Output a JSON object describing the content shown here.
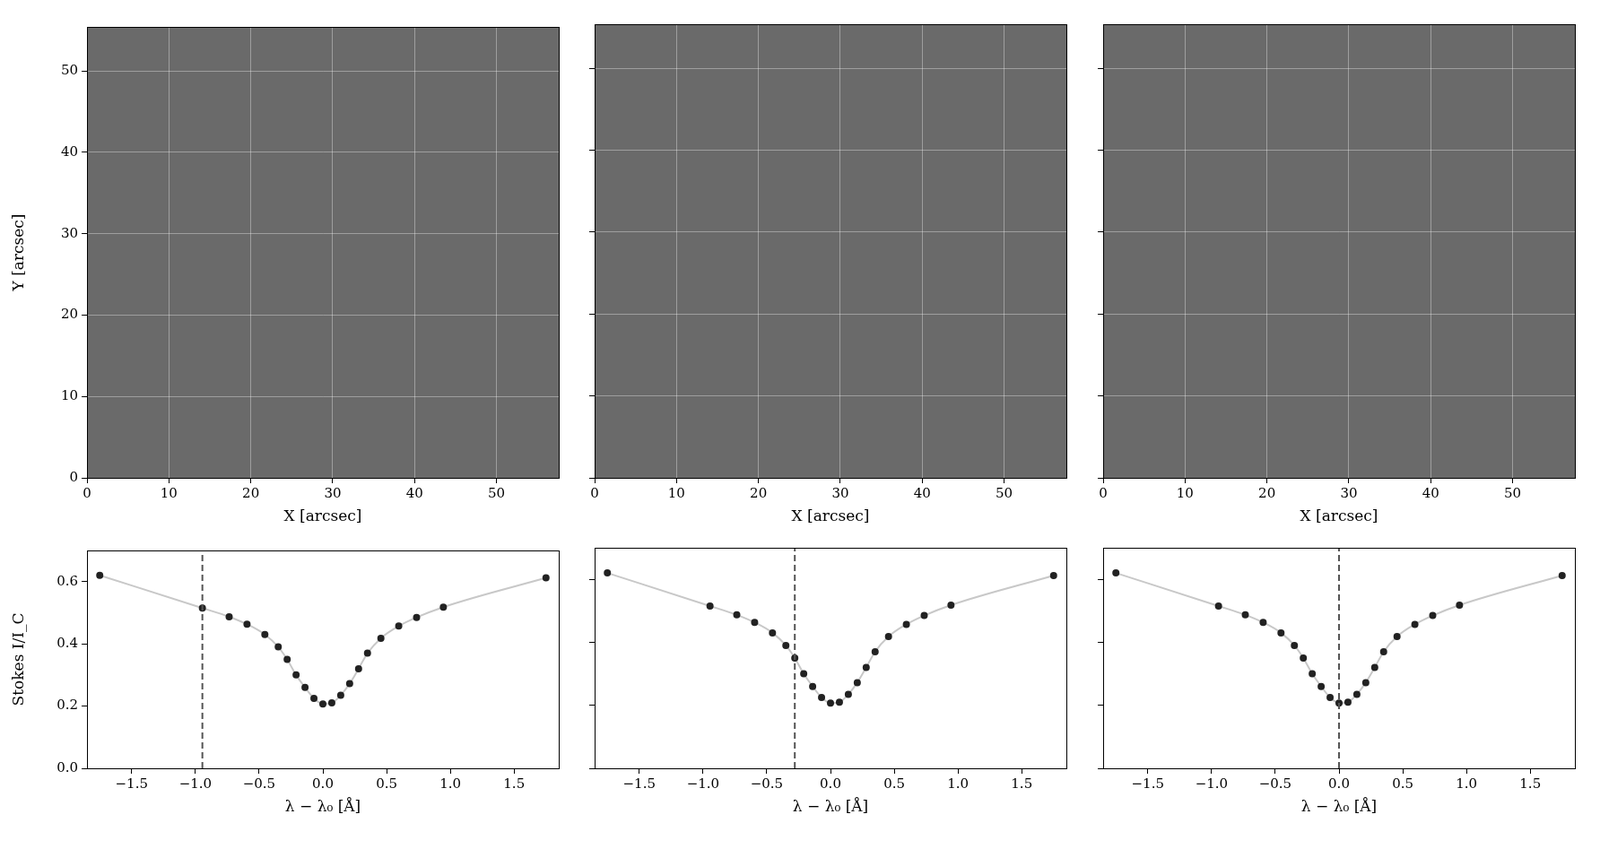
{
  "chart_data": [
    {
      "type": "image",
      "xlabel": "X [arcsec]",
      "ylabel": "Y [arcsec]",
      "xlim": [
        0,
        57.6
      ],
      "xticks": [
        0,
        10,
        20,
        30,
        40,
        50
      ],
      "ylim": [
        0,
        55.4
      ],
      "yticks": [
        0,
        10,
        20,
        30,
        40,
        50
      ],
      "grid": true
    },
    {
      "type": "image",
      "xlabel": "X [arcsec]",
      "xlim": [
        0,
        57.6
      ],
      "xticks": [
        0,
        10,
        20,
        30,
        40,
        50
      ],
      "ylim": [
        0,
        55.4
      ],
      "yticks": [
        0,
        10,
        20,
        30,
        40,
        50
      ],
      "grid": true,
      "tick_labels": "x"
    },
    {
      "type": "image",
      "xlabel": "X [arcsec]",
      "xlim": [
        0,
        57.6
      ],
      "xticks": [
        0,
        10,
        20,
        30,
        40,
        50
      ],
      "ylim": [
        0,
        55.4
      ],
      "yticks": [
        0,
        10,
        20,
        30,
        40,
        50
      ],
      "grid": true,
      "tick_labels": "x"
    },
    {
      "type": "line",
      "xlabel": "λ − λ₀ [Å]",
      "ylabel": "Stokes I/I_C",
      "x": [
        -1.75,
        -0.945,
        -0.735,
        -0.595,
        -0.455,
        -0.35,
        -0.28,
        -0.21,
        -0.14,
        -0.07,
        0,
        0.07,
        0.14,
        0.21,
        0.28,
        0.35,
        0.455,
        0.595,
        0.735,
        0.945,
        1.75
      ],
      "values": [
        0.62,
        0.515,
        0.487,
        0.463,
        0.43,
        0.39,
        0.35,
        0.3,
        0.26,
        0.225,
        0.207,
        0.21,
        0.235,
        0.272,
        0.32,
        0.37,
        0.418,
        0.457,
        0.485,
        0.518,
        0.612
      ],
      "color": "#c8c8c8",
      "marker": "circle",
      "dashed_line_x": -0.945,
      "xlim": [
        -1.85,
        1.85
      ],
      "xticks": [
        {
          "value": -1.5,
          "label": "−1.5"
        },
        {
          "value": -1,
          "label": "−1.0"
        },
        {
          "value": -0.5,
          "label": "−0.5"
        },
        {
          "value": 0,
          "label": "0.0"
        },
        0.5,
        {
          "value": 1,
          "label": "1.0"
        },
        1.5
      ],
      "ylim": [
        0,
        0.7
      ],
      "yticks": [
        {
          "value": 0,
          "label": "0.0"
        },
        0.2,
        0.4,
        0.6
      ],
      "grid": false
    },
    {
      "type": "line",
      "xlabel": "λ − λ₀ [Å]",
      "x": [
        -1.75,
        -0.945,
        -0.735,
        -0.595,
        -0.455,
        -0.35,
        -0.28,
        -0.21,
        -0.14,
        -0.07,
        0,
        0.07,
        0.14,
        0.21,
        0.28,
        0.35,
        0.455,
        0.595,
        0.735,
        0.945,
        1.75
      ],
      "values": [
        0.62,
        0.515,
        0.487,
        0.463,
        0.43,
        0.39,
        0.35,
        0.3,
        0.26,
        0.225,
        0.207,
        0.21,
        0.235,
        0.272,
        0.32,
        0.37,
        0.418,
        0.457,
        0.485,
        0.518,
        0.612
      ],
      "color": "#c8c8c8",
      "marker": "circle",
      "dashed_line_x": -0.28,
      "xlim": [
        -1.85,
        1.85
      ],
      "xticks": [
        {
          "value": -1.5,
          "label": "−1.5"
        },
        {
          "value": -1,
          "label": "−1.0"
        },
        {
          "value": -0.5,
          "label": "−0.5"
        },
        {
          "value": 0,
          "label": "0.0"
        },
        0.5,
        {
          "value": 1,
          "label": "1.0"
        },
        1.5
      ],
      "ylim": [
        0,
        0.7
      ],
      "yticks": [
        {
          "value": 0,
          "label": "0.0"
        },
        0.2,
        0.4,
        0.6
      ],
      "grid": false,
      "tick_labels": "x"
    },
    {
      "type": "line",
      "xlabel": "λ − λ₀ [Å]",
      "x": [
        -1.75,
        -0.945,
        -0.735,
        -0.595,
        -0.455,
        -0.35,
        -0.28,
        -0.21,
        -0.14,
        -0.07,
        0,
        0.07,
        0.14,
        0.21,
        0.28,
        0.35,
        0.455,
        0.595,
        0.735,
        0.945,
        1.75
      ],
      "values": [
        0.62,
        0.515,
        0.487,
        0.463,
        0.43,
        0.39,
        0.35,
        0.3,
        0.26,
        0.225,
        0.207,
        0.21,
        0.235,
        0.272,
        0.32,
        0.37,
        0.418,
        0.457,
        0.485,
        0.518,
        0.612
      ],
      "color": "#c8c8c8",
      "marker": "circle",
      "dashed_line_x": 0,
      "xlim": [
        -1.85,
        1.85
      ],
      "xticks": [
        {
          "value": -1.5,
          "label": "−1.5"
        },
        {
          "value": -1,
          "label": "−1.0"
        },
        {
          "value": -0.5,
          "label": "−0.5"
        },
        {
          "value": 0,
          "label": "0.0"
        },
        0.5,
        {
          "value": 1,
          "label": "1.0"
        },
        1.5
      ],
      "ylim": [
        0,
        0.7
      ],
      "yticks": [
        {
          "value": 0,
          "label": "0.0"
        },
        0.2,
        0.4,
        0.6
      ],
      "grid": false,
      "tick_labels": "x"
    }
  ]
}
